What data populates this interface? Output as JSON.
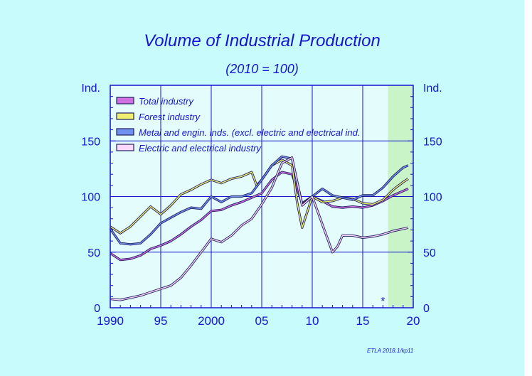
{
  "chart_data": {
    "type": "line",
    "title": "Volume  of  Industrial  Production",
    "subtitle": "(2010 = 100)",
    "ylabel_left": "Ind.",
    "ylabel_right": "Ind.",
    "xlim": [
      1990,
      2020
    ],
    "ylim": [
      0,
      200
    ],
    "y_ticks": [
      0,
      50,
      100,
      150
    ],
    "y_tick_labels": [
      "0",
      "50",
      "100",
      "150"
    ],
    "x_ticks": [
      1990,
      1995,
      2000,
      2005,
      2010,
      2015,
      2020
    ],
    "x_tick_labels": [
      "1990",
      "95",
      "2000",
      "05",
      "10",
      "15",
      "20"
    ],
    "forecast_start": 2017.5,
    "forecast_marker": "*",
    "forecast_marker_x": 2017,
    "grid": true,
    "legend_position": "top-left",
    "series": [
      {
        "name": "Total industry",
        "color": "#d070e0",
        "x": [
          1990,
          1991,
          1992,
          1993,
          1994,
          1995,
          1996,
          1997,
          1998,
          1999,
          2000,
          2001,
          2002,
          2003,
          2004,
          2005,
          2006,
          2007,
          2008,
          2009,
          2010,
          2011,
          2012,
          2013,
          2014,
          2015,
          2016,
          2017,
          2018,
          2019,
          2019.5
        ],
        "y": [
          49,
          43,
          44,
          47,
          53,
          56,
          60,
          66,
          73,
          79,
          87,
          88,
          92,
          95,
          99,
          103,
          115,
          122,
          120,
          94,
          100,
          96,
          91,
          90,
          91,
          90,
          92,
          96,
          101,
          105,
          107
        ]
      },
      {
        "name": "Forest industry",
        "color": "#f0f070",
        "x": [
          1990,
          1991,
          1992,
          1993,
          1994,
          1995,
          1996,
          1997,
          1998,
          1999,
          2000,
          2001,
          2002,
          2003,
          2004,
          2004.5,
          2005,
          2006,
          2007,
          2008,
          2008.5,
          2009,
          2010,
          2011,
          2012,
          2013,
          2014,
          2015,
          2016,
          2017,
          2018,
          2019,
          2019.5
        ],
        "y": [
          73,
          67,
          73,
          82,
          91,
          84,
          92,
          102,
          106,
          111,
          115,
          112,
          116,
          118,
          122,
          110,
          115,
          128,
          133,
          128,
          95,
          72,
          100,
          95,
          96,
          99,
          98,
          94,
          93,
          97,
          106,
          113,
          116
        ]
      },
      {
        "name": "Metal and engin. inds. (excl. electric and electrical ind.",
        "color": "#7090f0",
        "x": [
          1990,
          1991,
          1992,
          1993,
          1994,
          1995,
          1996,
          1997,
          1998,
          1999,
          2000,
          2001,
          2002,
          2003,
          2004,
          2005,
          2006,
          2007,
          2008,
          2009,
          2010,
          2011,
          2012,
          2013,
          2014,
          2015,
          2016,
          2017,
          2018,
          2019,
          2019.5
        ],
        "y": [
          71,
          58,
          57,
          58,
          66,
          76,
          81,
          86,
          90,
          89,
          100,
          95,
          100,
          100,
          103,
          115,
          128,
          136,
          134,
          93,
          100,
          107,
          101,
          99,
          97,
          101,
          101,
          108,
          118,
          126,
          128
        ]
      },
      {
        "name": "Electric and electrical industry",
        "color": "#ffd8ff",
        "x": [
          1990,
          1991,
          1992,
          1993,
          1994,
          1995,
          1996,
          1997,
          1998,
          1999,
          2000,
          2001,
          2002,
          2003,
          2004,
          2005,
          2006,
          2007,
          2008,
          2009,
          2010,
          2011,
          2012,
          2012.5,
          2013,
          2014,
          2015,
          2016,
          2017,
          2018,
          2019,
          2019.5
        ],
        "y": [
          8,
          7,
          9,
          11,
          14,
          17,
          20,
          27,
          38,
          50,
          62,
          59,
          65,
          74,
          80,
          93,
          108,
          130,
          135,
          92,
          100,
          75,
          50,
          55,
          65,
          65,
          63,
          64,
          66,
          69,
          71,
          72
        ]
      }
    ]
  },
  "credit": "ETLA 2018.1/kp11"
}
